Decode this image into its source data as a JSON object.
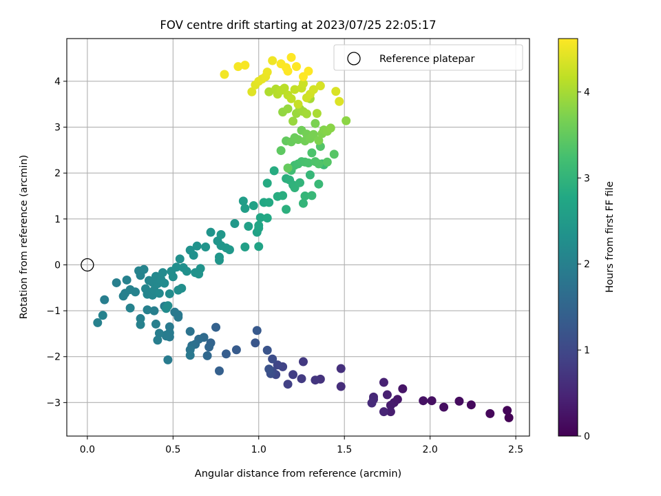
{
  "chart_data": {
    "type": "scatter",
    "title": "FOV centre drift starting at 2023/07/25 22:05:17",
    "xlabel": "Angular distance from reference (arcmin)",
    "ylabel": "Rotation from reference (arcmin)",
    "xlim": [
      -0.12,
      2.58
    ],
    "ylim": [
      -3.73,
      4.93
    ],
    "xticks": [
      0.0,
      0.5,
      1.0,
      1.5,
      2.0,
      2.5
    ],
    "xtick_labels": [
      "0.0",
      "0.5",
      "1.0",
      "1.5",
      "2.0",
      "2.5"
    ],
    "yticks": [
      -3,
      -2,
      -1,
      0,
      1,
      2,
      3,
      4
    ],
    "ytick_labels": [
      "−3",
      "−2",
      "−1",
      "0",
      "1",
      "2",
      "3",
      "4"
    ],
    "grid": true,
    "legend": {
      "position": "top-right",
      "entries": [
        "Reference platepar"
      ]
    },
    "colorbar": {
      "label": "Hours from first FF file",
      "colormap": "viridis",
      "range": [
        0,
        4.62
      ],
      "ticks": [
        0,
        1,
        2,
        3,
        4
      ],
      "tick_labels": [
        "0",
        "1",
        "2",
        "3",
        "4"
      ]
    },
    "reference_point": {
      "x": 0.0,
      "y": 0.0,
      "label": "Reference platepar"
    },
    "series": [
      {
        "points": [
          [
            2.46,
            -3.33,
            0.02
          ],
          [
            2.45,
            -3.17,
            0.05
          ],
          [
            2.35,
            -3.24,
            0.08
          ],
          [
            2.24,
            -3.05,
            0.11
          ],
          [
            2.17,
            -2.97,
            0.14
          ],
          [
            2.08,
            -3.1,
            0.17
          ],
          [
            2.01,
            -2.96,
            0.2
          ],
          [
            1.96,
            -2.96,
            0.23
          ],
          [
            1.84,
            -2.7,
            0.26
          ],
          [
            1.81,
            -2.93,
            0.29
          ],
          [
            1.79,
            -3.0,
            0.32
          ],
          [
            1.77,
            -3.06,
            0.35
          ],
          [
            1.77,
            -3.2,
            0.38
          ],
          [
            1.75,
            -2.83,
            0.41
          ],
          [
            1.73,
            -2.56,
            0.44
          ],
          [
            1.73,
            -3.2,
            0.47
          ],
          [
            1.67,
            -2.88,
            0.5
          ],
          [
            1.67,
            -2.93,
            0.53
          ],
          [
            1.66,
            -3.01,
            0.56
          ],
          [
            1.48,
            -2.65,
            0.6
          ],
          [
            1.48,
            -2.26,
            0.64
          ],
          [
            1.36,
            -2.49,
            0.68
          ],
          [
            1.33,
            -2.51,
            0.72
          ],
          [
            1.26,
            -2.11,
            0.76
          ],
          [
            1.25,
            -2.48,
            0.8
          ],
          [
            1.2,
            -2.39,
            0.84
          ],
          [
            1.17,
            -2.6,
            0.88
          ],
          [
            1.14,
            -2.22,
            0.92
          ],
          [
            1.11,
            -2.18,
            0.96
          ],
          [
            1.1,
            -2.39,
            1.0
          ],
          [
            1.08,
            -2.32,
            1.04
          ],
          [
            1.08,
            -2.05,
            1.08
          ],
          [
            1.07,
            -2.37,
            1.12
          ],
          [
            1.06,
            -2.27,
            1.16
          ],
          [
            1.05,
            -1.86,
            1.2
          ],
          [
            0.98,
            -1.7,
            1.24
          ],
          [
            0.99,
            -1.43,
            1.28
          ],
          [
            0.87,
            -1.85,
            1.32
          ],
          [
            0.81,
            -1.94,
            1.36
          ],
          [
            0.77,
            -2.31,
            1.4
          ],
          [
            0.75,
            -1.36,
            1.44
          ],
          [
            0.72,
            -1.7,
            1.48
          ],
          [
            0.71,
            -1.79,
            1.52
          ],
          [
            0.7,
            -1.98,
            1.56
          ],
          [
            0.68,
            -1.58,
            1.6
          ],
          [
            0.65,
            -1.62,
            1.64
          ],
          [
            0.63,
            -1.73,
            1.68
          ],
          [
            0.61,
            -1.76,
            1.72
          ],
          [
            0.6,
            -1.45,
            1.76
          ],
          [
            0.6,
            -1.85,
            1.8
          ],
          [
            0.6,
            -1.97,
            1.84
          ],
          [
            0.53,
            -1.09,
            1.85
          ],
          [
            0.53,
            -1.14,
            1.86
          ],
          [
            0.51,
            -1.03,
            1.87
          ],
          [
            0.48,
            -1.35,
            1.88
          ],
          [
            0.48,
            -1.57,
            1.89
          ],
          [
            0.48,
            -1.48,
            1.9
          ],
          [
            0.47,
            -2.07,
            1.91
          ],
          [
            0.46,
            -1.53,
            1.92
          ],
          [
            0.46,
            -1.55,
            1.93
          ],
          [
            0.45,
            -0.9,
            1.94
          ],
          [
            0.42,
            -1.49,
            1.95
          ],
          [
            0.41,
            -1.64,
            1.96
          ],
          [
            0.4,
            -1.29,
            1.97
          ],
          [
            0.39,
            -1.0,
            1.98
          ],
          [
            0.35,
            -0.98,
            1.99
          ],
          [
            0.31,
            -1.17,
            2.0
          ],
          [
            0.31,
            -1.3,
            2.01
          ],
          [
            0.06,
            -1.26,
            2.02
          ],
          [
            0.09,
            -1.1,
            2.03
          ],
          [
            0.1,
            -0.76,
            1.95
          ],
          [
            0.17,
            -0.39,
            1.97
          ],
          [
            0.21,
            -0.68,
            1.99
          ],
          [
            0.22,
            -0.62,
            2.0
          ],
          [
            0.23,
            -0.33,
            2.01
          ],
          [
            0.25,
            -0.54,
            2.02
          ],
          [
            0.25,
            -0.94,
            2.03
          ],
          [
            0.28,
            -0.59,
            2.04
          ],
          [
            0.3,
            -0.13,
            2.05
          ],
          [
            0.31,
            -0.23,
            2.06
          ],
          [
            0.33,
            -0.1,
            2.07
          ],
          [
            0.34,
            -0.52,
            2.08
          ],
          [
            0.35,
            -0.64,
            2.09
          ],
          [
            0.36,
            -0.34,
            2.1
          ],
          [
            0.38,
            -0.66,
            2.11
          ],
          [
            0.38,
            -0.38,
            2.12
          ],
          [
            0.39,
            -0.55,
            2.13
          ],
          [
            0.4,
            -0.25,
            2.14
          ],
          [
            0.41,
            -0.41,
            2.15
          ],
          [
            0.42,
            -0.62,
            2.16
          ],
          [
            0.43,
            -0.32,
            2.17
          ],
          [
            0.44,
            -0.17,
            2.18
          ],
          [
            0.45,
            -0.4,
            2.19
          ],
          [
            0.46,
            -0.95,
            2.2
          ],
          [
            0.47,
            -0.89,
            2.21
          ],
          [
            0.48,
            -0.63,
            2.22
          ],
          [
            0.49,
            -0.14,
            2.23
          ],
          [
            0.5,
            -0.26,
            2.24
          ],
          [
            0.52,
            -0.05,
            2.25
          ],
          [
            0.53,
            -0.55,
            2.26
          ],
          [
            0.54,
            0.13,
            2.27
          ],
          [
            0.55,
            -0.51,
            2.28
          ],
          [
            0.56,
            -0.06,
            2.29
          ],
          [
            0.58,
            -0.14,
            2.3
          ],
          [
            0.6,
            0.32,
            2.31
          ],
          [
            0.62,
            0.21,
            2.32
          ],
          [
            0.63,
            -0.17,
            2.33
          ],
          [
            0.64,
            0.41,
            2.34
          ],
          [
            0.65,
            -0.2,
            2.35
          ],
          [
            0.66,
            -0.08,
            2.36
          ],
          [
            0.69,
            0.39,
            2.37
          ],
          [
            0.72,
            0.71,
            2.38
          ],
          [
            0.76,
            0.52,
            2.39
          ],
          [
            0.77,
            0.1,
            2.4
          ],
          [
            0.77,
            0.17,
            2.41
          ],
          [
            0.78,
            0.42,
            2.42
          ],
          [
            0.78,
            0.66,
            2.43
          ],
          [
            0.81,
            0.37,
            2.44
          ],
          [
            0.83,
            0.33,
            2.45
          ],
          [
            0.86,
            0.9,
            2.46
          ],
          [
            0.91,
            1.39,
            2.55
          ],
          [
            0.92,
            1.23,
            2.58
          ],
          [
            0.92,
            0.39,
            2.6
          ],
          [
            0.94,
            0.84,
            2.62
          ],
          [
            0.97,
            1.29,
            2.64
          ],
          [
            0.99,
            0.71,
            2.66
          ],
          [
            1.0,
            0.4,
            2.68
          ],
          [
            1.0,
            0.8,
            2.7
          ],
          [
            1.0,
            0.86,
            2.72
          ],
          [
            1.01,
            1.03,
            2.74
          ],
          [
            1.03,
            1.36,
            2.76
          ],
          [
            1.05,
            1.02,
            2.78
          ],
          [
            1.06,
            1.36,
            2.8
          ],
          [
            1.05,
            1.78,
            2.82
          ],
          [
            1.09,
            2.05,
            2.84
          ],
          [
            1.11,
            1.49,
            2.86
          ],
          [
            1.14,
            1.51,
            2.88
          ],
          [
            1.16,
            1.88,
            2.9
          ],
          [
            1.16,
            1.21,
            2.92
          ],
          [
            1.18,
            1.85,
            2.94
          ],
          [
            1.2,
            1.74,
            2.96
          ],
          [
            1.21,
            1.68,
            2.98
          ],
          [
            1.24,
            1.79,
            3.0
          ],
          [
            1.26,
            1.34,
            3.02
          ],
          [
            1.27,
            1.5,
            3.04
          ],
          [
            1.3,
            1.96,
            3.06
          ],
          [
            1.31,
            1.51,
            3.08
          ],
          [
            1.35,
            1.76,
            3.1
          ],
          [
            1.37,
            2.2,
            3.12
          ],
          [
            1.38,
            2.18,
            3.14
          ],
          [
            1.18,
            2.1,
            3.16
          ],
          [
            1.19,
            2.06,
            3.18
          ],
          [
            1.21,
            2.17,
            3.2
          ],
          [
            1.23,
            2.2,
            3.22
          ],
          [
            1.25,
            2.25,
            3.24
          ],
          [
            1.27,
            2.24,
            3.26
          ],
          [
            1.29,
            2.22,
            3.28
          ],
          [
            1.31,
            2.44,
            3.3
          ],
          [
            1.33,
            2.25,
            3.32
          ],
          [
            1.35,
            2.2,
            3.34
          ],
          [
            1.36,
            2.58,
            3.36
          ],
          [
            1.4,
            2.24,
            3.38
          ],
          [
            1.44,
            2.41,
            3.4
          ],
          [
            1.13,
            2.49,
            3.46
          ],
          [
            1.16,
            2.7,
            3.5
          ],
          [
            1.17,
            2.11,
            3.52
          ],
          [
            1.19,
            2.68,
            3.54
          ],
          [
            1.21,
            2.77,
            3.56
          ],
          [
            1.23,
            2.73,
            3.58
          ],
          [
            1.25,
            2.93,
            3.6
          ],
          [
            1.27,
            2.7,
            3.62
          ],
          [
            1.28,
            2.85,
            3.64
          ],
          [
            1.3,
            2.75,
            3.66
          ],
          [
            1.32,
            2.84,
            3.68
          ],
          [
            1.33,
            3.08,
            3.7
          ],
          [
            1.35,
            2.71,
            3.72
          ],
          [
            1.37,
            2.86,
            3.74
          ],
          [
            1.38,
            2.94,
            3.76
          ],
          [
            1.4,
            2.91,
            3.78
          ],
          [
            1.42,
            2.98,
            3.8
          ],
          [
            1.51,
            3.14,
            3.82
          ],
          [
            1.14,
            3.33,
            3.86
          ],
          [
            1.17,
            3.4,
            3.88
          ],
          [
            1.2,
            3.13,
            3.9
          ],
          [
            1.22,
            3.3,
            3.92
          ],
          [
            1.24,
            3.4,
            3.94
          ],
          [
            1.26,
            3.34,
            3.96
          ],
          [
            1.28,
            3.29,
            3.98
          ],
          [
            1.3,
            3.62,
            4.0
          ],
          [
            1.34,
            3.3,
            4.02
          ],
          [
            1.06,
            3.77,
            4.06
          ],
          [
            1.1,
            3.83,
            4.08
          ],
          [
            1.11,
            3.72,
            4.1
          ],
          [
            1.13,
            3.8,
            4.12
          ],
          [
            1.15,
            3.85,
            4.14
          ],
          [
            1.17,
            3.7,
            4.16
          ],
          [
            1.19,
            3.62,
            4.18
          ],
          [
            1.21,
            3.82,
            4.2
          ],
          [
            1.23,
            3.5,
            4.22
          ],
          [
            1.25,
            3.85,
            4.24
          ],
          [
            1.26,
            3.95,
            4.26
          ],
          [
            1.28,
            3.64,
            4.28
          ],
          [
            1.3,
            3.72,
            4.3
          ],
          [
            1.32,
            3.82,
            4.32
          ],
          [
            1.36,
            3.9,
            4.34
          ],
          [
            1.45,
            3.78,
            4.36
          ],
          [
            1.47,
            3.56,
            4.38
          ],
          [
            0.96,
            3.77,
            4.4
          ],
          [
            0.98,
            3.92,
            4.42
          ],
          [
            1.0,
            4.0,
            4.44
          ],
          [
            1.02,
            4.05,
            4.46
          ],
          [
            1.04,
            4.1,
            4.48
          ],
          [
            1.05,
            4.2,
            4.5
          ],
          [
            1.08,
            4.45,
            4.52
          ],
          [
            0.8,
            4.15,
            4.54
          ],
          [
            0.88,
            4.32,
            4.56
          ],
          [
            0.92,
            4.35,
            4.58
          ],
          [
            1.13,
            4.38,
            4.6
          ],
          [
            1.16,
            4.3,
            4.61
          ],
          [
            1.17,
            4.22,
            4.62
          ],
          [
            1.19,
            4.52,
            4.62
          ],
          [
            1.22,
            4.32,
            4.62
          ],
          [
            1.26,
            4.1,
            4.62
          ],
          [
            1.29,
            4.22,
            4.62
          ]
        ]
      }
    ]
  }
}
